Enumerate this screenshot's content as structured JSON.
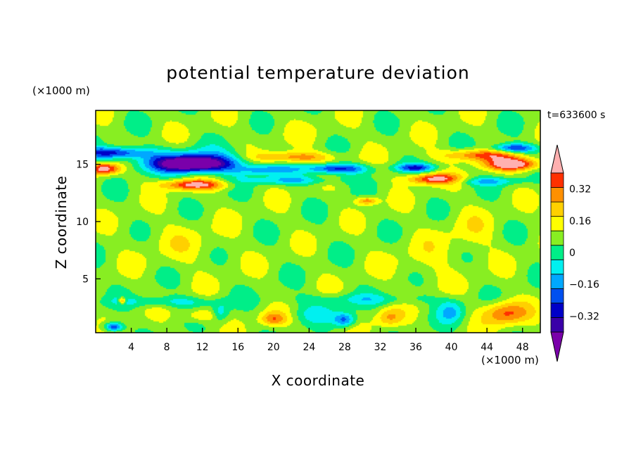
{
  "chart_data": {
    "type": "heatmap",
    "title": "potential temperature deviation",
    "xlabel": "X coordinate",
    "ylabel": "Z coordinate",
    "x_unit": "(×1000 m)",
    "y_unit": "(×1000 m)",
    "time_label": "t=633600 s",
    "xlim": [
      0,
      50
    ],
    "ylim": [
      0.3,
      19.7
    ],
    "x_ticks": [
      4,
      8,
      12,
      16,
      20,
      24,
      28,
      32,
      36,
      40,
      44,
      48
    ],
    "x_tick_labels": [
      "4",
      "8",
      "12",
      "16",
      "20",
      "24",
      "28",
      "32",
      "36",
      "40",
      "44",
      "48"
    ],
    "y_ticks": [
      5,
      10,
      15
    ],
    "y_tick_labels": [
      "5",
      "10",
      "15"
    ],
    "colorbar": {
      "levels": [
        -0.48,
        -0.4,
        -0.32,
        -0.24,
        -0.16,
        -0.08,
        0,
        0.08,
        0.16,
        0.24,
        0.32,
        0.4,
        0.48
      ],
      "labels": [
        "0.32",
        "0.16",
        "0",
        "−0.16",
        "−0.32"
      ],
      "label_values": [
        0.32,
        0.16,
        0,
        -0.16,
        -0.32
      ],
      "colors": [
        "#7a00aa",
        "#3a00a8",
        "#0000c8",
        "#0050f0",
        "#00a8ff",
        "#00f0f0",
        "#00ee88",
        "#88ee22",
        "#ffff00",
        "#ffd000",
        "#ff9000",
        "#ff3000",
        "#ffb0b0"
      ],
      "extend": "both"
    },
    "background_value": 0.04,
    "features": [
      {
        "x": 11,
        "z": 15.0,
        "value": -0.5,
        "sx": 3.6,
        "sz": 0.6
      },
      {
        "x": 11,
        "z": 15.2,
        "value": -0.34,
        "sx": 6.5,
        "sz": 1.0
      },
      {
        "x": 2,
        "z": 16.0,
        "value": -0.4,
        "sx": 3.5,
        "sz": 0.5
      },
      {
        "x": 22,
        "z": 15.6,
        "value": 0.28,
        "sx": 4.5,
        "sz": 0.5
      },
      {
        "x": 19,
        "z": 14.5,
        "value": -0.22,
        "sx": 3.0,
        "sz": 0.4
      },
      {
        "x": 27,
        "z": 14.6,
        "value": -0.4,
        "sx": 3.5,
        "sz": 0.45
      },
      {
        "x": 11,
        "z": 13.2,
        "value": 0.38,
        "sx": 3.5,
        "sz": 0.45
      },
      {
        "x": 1,
        "z": 14.6,
        "value": 0.45,
        "sx": 1.8,
        "sz": 0.5
      },
      {
        "x": 47,
        "z": 15.0,
        "value": 0.48,
        "sx": 3.0,
        "sz": 0.55
      },
      {
        "x": 43,
        "z": 15.8,
        "value": 0.3,
        "sx": 4.0,
        "sz": 0.5
      },
      {
        "x": 47,
        "z": 16.4,
        "value": -0.38,
        "sx": 2.5,
        "sz": 0.4
      },
      {
        "x": 38,
        "z": 13.7,
        "value": 0.4,
        "sx": 3.0,
        "sz": 0.45
      },
      {
        "x": 36,
        "z": 14.7,
        "value": -0.33,
        "sx": 2.2,
        "sz": 0.35
      },
      {
        "x": 22,
        "z": 13.6,
        "value": -0.2,
        "sx": 5.5,
        "sz": 0.4
      },
      {
        "x": 44,
        "z": 13.5,
        "value": -0.18,
        "sx": 4.0,
        "sz": 0.35
      },
      {
        "x": 30.5,
        "z": 11.8,
        "value": 0.28,
        "sx": 1.2,
        "sz": 0.35
      },
      {
        "x": 46,
        "z": 2.0,
        "value": 0.3,
        "sx": 2.5,
        "sz": 1.0
      },
      {
        "x": 28,
        "z": 1.4,
        "value": -0.3,
        "sx": 1.2,
        "sz": 0.6
      },
      {
        "x": 2,
        "z": 0.8,
        "value": -0.4,
        "sx": 1.0,
        "sz": 0.4
      },
      {
        "x": 14,
        "z": 2.0,
        "value": -0.2,
        "sx": 1.0,
        "sz": 0.8
      },
      {
        "x": 20,
        "z": 1.5,
        "value": 0.25,
        "sx": 1.5,
        "sz": 0.6
      },
      {
        "x": 12,
        "z": 1.8,
        "value": 0.18,
        "sx": 2.0,
        "sz": 0.6
      },
      {
        "x": 33,
        "z": 1.6,
        "value": 0.2,
        "sx": 1.5,
        "sz": 0.8
      },
      {
        "x": 40,
        "z": 2.2,
        "value": -0.2,
        "sx": 1.5,
        "sz": 1.0
      },
      {
        "x": 8,
        "z": 3.0,
        "value": -0.15,
        "sx": 6.0,
        "sz": 0.5
      },
      {
        "x": 30,
        "z": 3.2,
        "value": -0.12,
        "sx": 8.0,
        "sz": 0.5
      },
      {
        "x": 25,
        "z": 2.0,
        "value": -0.12,
        "sx": 3.0,
        "sz": 0.8
      },
      {
        "x": 3,
        "z": 3.1,
        "value": 0.3,
        "sx": 0.4,
        "sz": 0.3
      },
      {
        "x": 10,
        "z": 8.0,
        "value": 0.06,
        "sx": 5.0,
        "sz": 2.0
      },
      {
        "x": 37,
        "z": 6.5,
        "value": 0.06,
        "sx": 4.0,
        "sz": 2.0
      },
      {
        "x": 42,
        "z": 9.0,
        "value": 0.07,
        "sx": 3.0,
        "sz": 2.0
      },
      {
        "x": 24,
        "z": 17.8,
        "value": 0.02,
        "sx": 8.0,
        "sz": 1.2
      }
    ]
  }
}
